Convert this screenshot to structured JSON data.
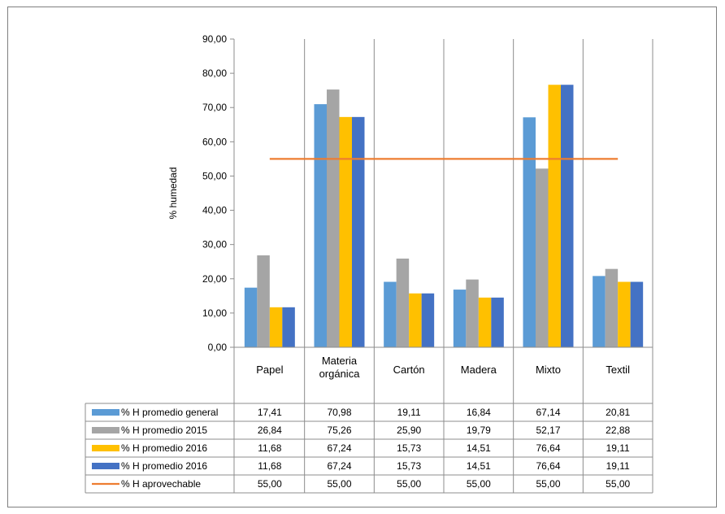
{
  "chart_data": {
    "type": "bar",
    "title": "",
    "xlabel": "",
    "ylabel": "% humedad",
    "ylim": [
      0,
      90
    ],
    "yticks": [
      "0,00",
      "10,00",
      "20,00",
      "30,00",
      "40,00",
      "50,00",
      "60,00",
      "70,00",
      "80,00",
      "90,00"
    ],
    "categories": [
      [
        "Papel"
      ],
      [
        "Materia",
        "orgánica"
      ],
      [
        "Cartón"
      ],
      [
        "Madera"
      ],
      [
        "Mixto"
      ],
      [
        "Textil"
      ]
    ],
    "series": [
      {
        "name": "% H promedio general",
        "kind": "bar",
        "color": "#5b9bd5",
        "values": [
          17.41,
          70.98,
          19.11,
          16.84,
          67.14,
          20.81
        ],
        "labels": [
          "17,41",
          "70,98",
          "19,11",
          "16,84",
          "67,14",
          "20,81"
        ]
      },
      {
        "name": "% H promedio 2015",
        "kind": "bar",
        "color": "#a5a5a5",
        "values": [
          26.84,
          75.26,
          25.9,
          19.79,
          52.17,
          22.88
        ],
        "labels": [
          "26,84",
          "75,26",
          "25,90",
          "19,79",
          "52,17",
          "22,88"
        ]
      },
      {
        "name": "% H promedio 2016",
        "kind": "bar",
        "color": "#ffc000",
        "values": [
          11.68,
          67.24,
          15.73,
          14.51,
          76.64,
          19.11
        ],
        "labels": [
          "11,68",
          "67,24",
          "15,73",
          "14,51",
          "76,64",
          "19,11"
        ]
      },
      {
        "name": "% H promedio 2016",
        "kind": "bar",
        "color": "#4472c4",
        "values": [
          11.68,
          67.24,
          15.73,
          14.51,
          76.64,
          19.11
        ],
        "labels": [
          "11,68",
          "67,24",
          "15,73",
          "14,51",
          "76,64",
          "19,11"
        ]
      },
      {
        "name": "% H aprovechable",
        "kind": "line",
        "color": "#ed7d31",
        "values": [
          55.0,
          55.0,
          55.0,
          55.0,
          55.0,
          55.0
        ],
        "labels": [
          "55,00",
          "55,00",
          "55,00",
          "55,00",
          "55,00",
          "55,00"
        ]
      }
    ],
    "grid": false,
    "legend": "data-table"
  }
}
